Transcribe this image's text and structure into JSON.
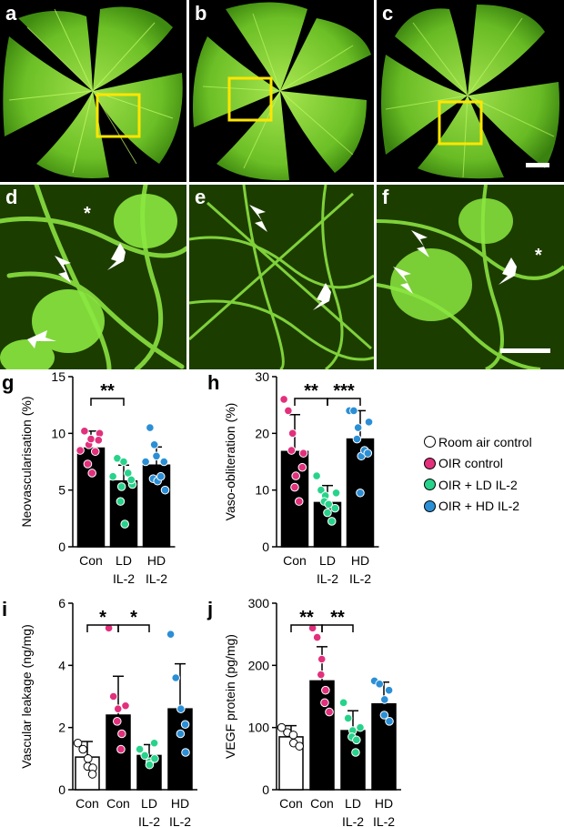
{
  "panels_top": [
    {
      "letter": "a"
    },
    {
      "letter": "b"
    },
    {
      "letter": "c"
    },
    {
      "letter": "d",
      "asterisk": "*"
    },
    {
      "letter": "e"
    },
    {
      "letter": "f",
      "asterisk": "*"
    }
  ],
  "colors": {
    "tissue_green": "#7fd13a",
    "tissue_dark": "#163300",
    "highlight_box": "#ffe600",
    "room_air": "#ffffff",
    "oir_control": "#e2307c",
    "oir_ld": "#27d38a",
    "oir_hd": "#2b8fd6",
    "bar": "#000000"
  },
  "legend": {
    "items": [
      {
        "label": "Room air control",
        "color": "#ffffff"
      },
      {
        "label": "OIR control",
        "color": "#e2307c"
      },
      {
        "label": "OIR + LD IL-2",
        "color": "#27d38a"
      },
      {
        "label": "OIR + HD IL-2",
        "color": "#2b8fd6"
      }
    ]
  },
  "chart_data": [
    {
      "id": "g",
      "letter": "g",
      "type": "bar",
      "ylabel": "Neovascularisation (%)",
      "ylim": [
        0,
        15
      ],
      "yticks": [
        0,
        5,
        10,
        15
      ],
      "categories": [
        "Con",
        "LD IL-2",
        "HD IL-2"
      ],
      "category_lines": [
        [
          "Con"
        ],
        [
          "LD",
          "IL-2"
        ],
        [
          "HD",
          "IL-2"
        ]
      ],
      "values": [
        8.7,
        5.8,
        7.2
      ],
      "errors": [
        1.5,
        1.4,
        1.6
      ],
      "groups": [
        "oir_control",
        "oir_ld",
        "oir_hd"
      ],
      "points": [
        [
          8.5,
          10.2,
          9.0,
          7.3,
          6.5,
          9.5,
          8.4,
          10.0,
          9.4
        ],
        [
          6.2,
          7.8,
          5.3,
          4.0,
          2.0,
          7.5,
          6.5,
          5.5,
          5.9
        ],
        [
          7.5,
          10.5,
          9.0,
          6.0,
          5.8,
          8.0,
          6.2,
          5.0,
          7.5
        ]
      ],
      "significance": [
        {
          "from": 0,
          "to": 1,
          "label": "**"
        }
      ]
    },
    {
      "id": "h",
      "letter": "h",
      "type": "bar",
      "ylabel": "Vaso-obliteration (%)",
      "ylim": [
        0,
        30
      ],
      "yticks": [
        0,
        10,
        20,
        30
      ],
      "categories": [
        "Con",
        "LD IL-2",
        "HD IL-2"
      ],
      "category_lines": [
        [
          "Con"
        ],
        [
          "LD",
          "IL-2"
        ],
        [
          "HD",
          "IL-2"
        ]
      ],
      "values": [
        16.8,
        7.8,
        19.0
      ],
      "errors": [
        6.5,
        3.0,
        5.0
      ],
      "groups": [
        "oir_control",
        "oir_ld",
        "oir_hd"
      ],
      "points": [
        [
          26.0,
          24.0,
          20.0,
          17.0,
          12.5,
          10.5,
          8.0,
          16.5,
          14.0
        ],
        [
          12.5,
          10.0,
          9.0,
          8.0,
          7.5,
          6.0,
          4.5,
          9.5,
          6.8
        ],
        [
          24.0,
          24.0,
          21.0,
          19.0,
          16.0,
          9.5,
          17.0,
          22.0,
          16.5
        ]
      ],
      "significance": [
        {
          "from": 0,
          "to": 1,
          "label": "**"
        },
        {
          "from": 1,
          "to": 2,
          "label": "***"
        }
      ]
    },
    {
      "id": "i",
      "letter": "i",
      "type": "bar",
      "ylabel": "Vascular leakage (ng/mg)",
      "ylim": [
        0,
        6
      ],
      "yticks": [
        0,
        2,
        4,
        6
      ],
      "categories": [
        "Con",
        "Con",
        "LD IL-2",
        "HD IL-2"
      ],
      "category_lines": [
        [
          "Con"
        ],
        [
          "Con"
        ],
        [
          "LD",
          "IL-2"
        ],
        [
          "HD",
          "IL-2"
        ]
      ],
      "values": [
        1.05,
        2.4,
        1.1,
        2.6
      ],
      "errors": [
        0.5,
        1.25,
        0.35,
        1.45
      ],
      "groups": [
        "room_air",
        "oir_control",
        "oir_ld",
        "oir_hd"
      ],
      "points": [
        [
          1.5,
          1.3,
          1.0,
          0.75,
          0.7,
          0.5
        ],
        [
          5.2,
          3.0,
          2.6,
          2.2,
          1.8,
          1.3,
          2.7
        ],
        [
          1.3,
          1.1,
          0.9,
          0.8,
          1.0,
          1.5
        ],
        [
          5.0,
          3.6,
          2.6,
          1.8,
          1.2,
          2.1
        ]
      ],
      "significance": [
        {
          "from": 0,
          "to": 1,
          "label": "*"
        },
        {
          "from": 1,
          "to": 2,
          "label": "*"
        }
      ]
    },
    {
      "id": "j",
      "letter": "j",
      "type": "bar",
      "ylabel": "VEGF protein (pg/mg)",
      "ylim": [
        0,
        300
      ],
      "yticks": [
        0,
        100,
        200,
        300
      ],
      "categories": [
        "Con",
        "Con",
        "LD IL-2",
        "HD IL-2"
      ],
      "category_lines": [
        [
          "Con"
        ],
        [
          "Con"
        ],
        [
          "LD",
          "IL-2"
        ],
        [
          "HD",
          "IL-2"
        ]
      ],
      "values": [
        85,
        175,
        95,
        138
      ],
      "errors": [
        18,
        55,
        32,
        35
      ],
      "groups": [
        "room_air",
        "oir_control",
        "oir_ld",
        "oir_hd"
      ],
      "points": [
        [
          100,
          92,
          88,
          75,
          70
        ],
        [
          260,
          245,
          210,
          185,
          160,
          140,
          125
        ],
        [
          140,
          115,
          95,
          85,
          80,
          60,
          100
        ],
        [
          175,
          170,
          145,
          120,
          110,
          160
        ]
      ],
      "significance": [
        {
          "from": 0,
          "to": 1,
          "label": "**"
        },
        {
          "from": 1,
          "to": 2,
          "label": "**"
        }
      ]
    }
  ]
}
